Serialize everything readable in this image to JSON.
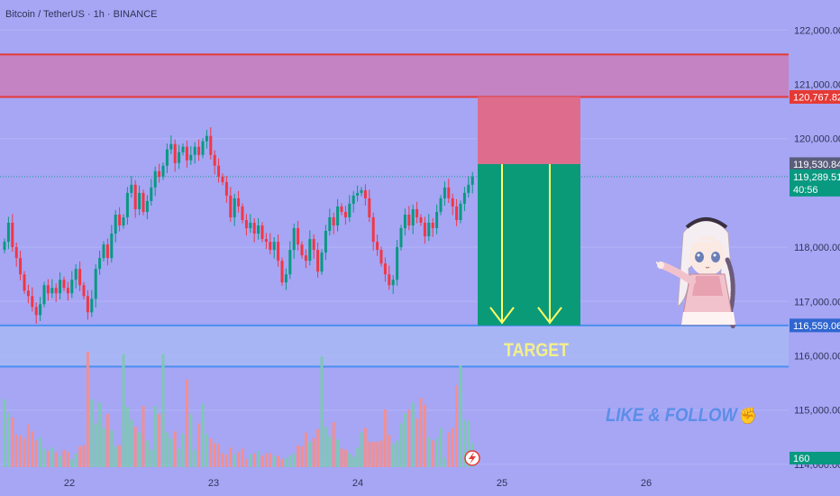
{
  "header": {
    "symbol_line": "Bitcoin / TetherUS · 1h · BINANCE"
  },
  "annotations": {
    "target_label": "TARGET",
    "call_to_action": "LIKE & FOLLOW",
    "call_to_action_icon": "thumbs-up-icon",
    "mascot_icon": "anime-girl-pointing-icon",
    "flash_icon": "lightning-icon"
  },
  "colors": {
    "background": "#a6a6f5",
    "bull": "#089981",
    "bear": "#f23645",
    "vol_bull": "#7ec8b3",
    "vol_bear": "#f08f93",
    "resistance_zone": "#c97db8",
    "resistance_line": "#e53935",
    "support_zone": "#a9b7f5",
    "support_line": "#4a8ff0",
    "stop_box": "#de6d8d",
    "profit_box": "#0b9a78",
    "arrow": "#ffff66"
  },
  "chart_data": {
    "type": "candlestick",
    "symbol": "Bitcoin / TetherUS",
    "interval": "1h",
    "exchange": "BINANCE",
    "ylim": [
      114000,
      122500
    ],
    "y_ticks": [
      "122,000.00",
      "121,000.00",
      "120,000.00",
      "118,000.00",
      "117,000.00",
      "116,000.00",
      "115,000.00",
      "114,000.00"
    ],
    "x_ticks": [
      "22",
      "23",
      "24",
      "25",
      "26"
    ],
    "price_tags": {
      "resistance": "120,767.82",
      "stop": "119,530.84",
      "last_price": "119,289.51",
      "countdown": "40:56",
      "support": "116,559.06",
      "volume": "160"
    },
    "resistance_zone": [
      120767.82,
      121550
    ],
    "support_zone": [
      115800,
      116559.06
    ],
    "position": {
      "type": "short",
      "entry": 119289.51,
      "stop": 120767.82,
      "target": 116559.06
    },
    "close": [
      118100,
      118450,
      118000,
      117800,
      117500,
      117200,
      117100,
      116900,
      116750,
      116950,
      117300,
      117150,
      117250,
      117150,
      117400,
      117250,
      117150,
      117400,
      117600,
      117300,
      117100,
      116800,
      117050,
      117600,
      117800,
      118050,
      117800,
      118250,
      118600,
      118400,
      118550,
      119000,
      119150,
      118700,
      119000,
      118650,
      118850,
      119100,
      119400,
      119300,
      119500,
      119800,
      119900,
      119550,
      119750,
      119850,
      119600,
      119700,
      119850,
      119700,
      119950,
      120050,
      119700,
      119500,
      119300,
      119200,
      118950,
      118550,
      118900,
      118750,
      118500,
      118350,
      118450,
      118250,
      118400,
      118150,
      118100,
      117950,
      118100,
      117750,
      117350,
      117500,
      117950,
      118350,
      118050,
      117850,
      117750,
      118150,
      117950,
      117550,
      117900,
      118300,
      118550,
      118400,
      118750,
      118650,
      118550,
      118800,
      118950,
      119000,
      119050,
      118900,
      118550,
      118100,
      117950,
      117700,
      117500,
      117300,
      117400,
      118000,
      118350,
      118600,
      118400,
      118700,
      118550,
      118450,
      118200,
      118450,
      118350,
      118650,
      118900,
      119100,
      118900,
      118750,
      118500,
      118800,
      119000,
      119150,
      119300
    ],
    "volume": [
      0.59,
      0.47,
      0.43,
      0.28,
      0.28,
      0.25,
      0.37,
      0.31,
      0.23,
      0.26,
      0.16,
      0.14,
      0.17,
      0.13,
      0.1,
      0.15,
      0.13,
      0.07,
      0.12,
      0.18,
      0.19,
      1.0,
      0.59,
      0.38,
      0.56,
      0.34,
      0.46,
      0.32,
      0.18,
      0.19,
      0.98,
      0.52,
      0.41,
      0.35,
      0.3,
      0.53,
      0.23,
      0.15,
      0.53,
      0.46,
      0.98,
      0.3,
      0.25,
      0.31,
      0.16,
      0.29,
      0.76,
      0.46,
      0.15,
      0.38,
      0.55,
      0.29,
      0.25,
      0.21,
      0.2,
      0.12,
      0.11,
      0.17,
      0.11,
      0.13,
      0.16,
      0.07,
      0.11,
      0.12,
      0.14,
      0.1,
      0.12,
      0.12,
      0.1,
      0.1,
      0.07,
      0.08,
      0.1,
      0.12,
      0.19,
      0.18,
      0.3,
      0.22,
      0.25,
      0.33,
      0.96,
      0.35,
      0.27,
      0.39,
      0.24,
      0.16,
      0.15,
      0.12,
      0.09,
      0.17,
      0.3,
      0.34,
      0.22,
      0.22,
      0.22,
      0.23,
      0.5,
      0.28,
      0.2,
      0.23,
      0.38,
      0.47,
      0.5,
      0.56,
      0.42,
      0.6,
      0.54,
      0.26,
      0.23,
      0.25,
      0.34,
      0.08,
      0.3,
      0.34,
      0.71,
      0.88,
      0.41,
      0.4,
      0.21
    ]
  }
}
